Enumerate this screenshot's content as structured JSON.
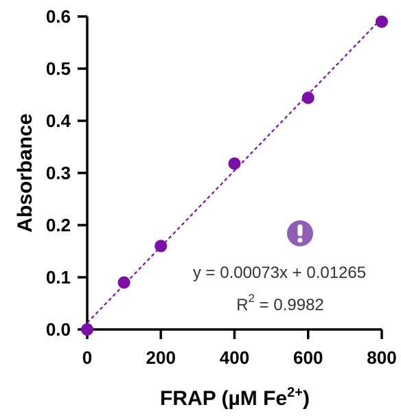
{
  "chart_data": {
    "type": "scatter",
    "xlabel": "FRAP (µM Fe",
    "xlabel_superscript": "2+",
    "xlabel_suffix": ")",
    "ylabel": "Absorbance",
    "xlim": [
      0,
      800
    ],
    "ylim": [
      0,
      0.6
    ],
    "x_ticks": [
      0,
      200,
      400,
      600,
      800
    ],
    "y_ticks": [
      0.0,
      0.1,
      0.2,
      0.3,
      0.4,
      0.5,
      0.6
    ],
    "x_tick_labels": [
      "0",
      "200",
      "400",
      "600",
      "800"
    ],
    "y_tick_labels": [
      "0.0",
      "0.1",
      "0.2",
      "0.3",
      "0.4",
      "0.5",
      "0.6"
    ],
    "grid": false,
    "series": [
      {
        "x": [
          0,
          100,
          200,
          400,
          600,
          800
        ],
        "y": [
          0.0,
          0.09,
          0.16,
          0.318,
          0.444,
          0.59
        ]
      }
    ],
    "fit": {
      "slope": 0.00073,
      "intercept": 0.01265
    },
    "annotations": {
      "equation": "y = 0.00073x + 0.01265",
      "r2_prefix": "R",
      "r2_superscript": "2",
      "r2_value": " = 0.9982",
      "warning_icon": "exclamation-circle-icon"
    },
    "colors": {
      "marker": "#7B0FA8",
      "fit_line": "#7B0FA8",
      "warning_icon_bg": "#8E5FB4",
      "warning_icon_fg": "#ffffff"
    }
  }
}
